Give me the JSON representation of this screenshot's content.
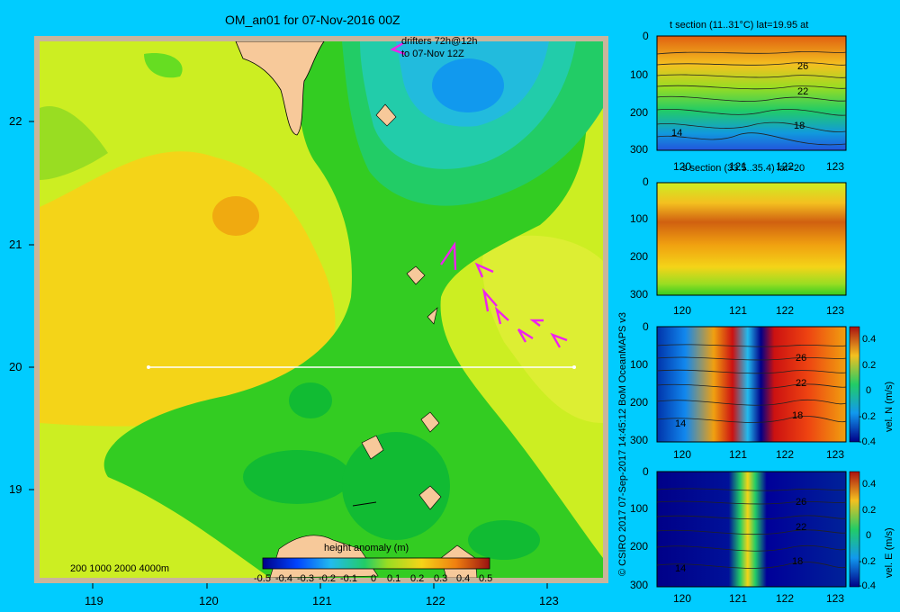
{
  "map": {
    "title": "OM_an01 for 07-Nov-2016 00Z",
    "drifter_note_1": "drifters 72h@12h",
    "drifter_note_2": "to 07-Nov 12Z",
    "x_ticks": [
      "119",
      "120",
      "121",
      "122",
      "123"
    ],
    "y_ticks": [
      "22",
      "21",
      "20",
      "19"
    ],
    "depth_legend": "200  1000  2000  4000m",
    "colorbar_title": "height anomaly (m)",
    "colorbar_ticks": [
      "-0.5",
      "-0.4",
      "-0.3",
      "-0.2",
      "-0.1",
      "0",
      "0.1",
      "0.2",
      "0.3",
      "0.4",
      "0.5"
    ],
    "colors": {
      "background": "#00ccff",
      "drifter": "#ee22ee",
      "land": "#f7c99a"
    }
  },
  "credit": "© CSIRO 2017   07-Sep-2017 14:45:12 BoM OceanMAPS v3",
  "panels": [
    {
      "title": "t section (11..31°C) lat=19.95 at",
      "y_ticks": [
        "0",
        "100",
        "200",
        "300"
      ],
      "x_ticks": [
        "120",
        "121",
        "122",
        "123"
      ],
      "contour_labels": [
        "26",
        "22",
        "18",
        "14"
      ]
    },
    {
      "title": "s section (33.5..35.4) lat=20",
      "y_ticks": [
        "0",
        "100",
        "200",
        "300"
      ],
      "x_ticks": [
        "120",
        "121",
        "122",
        "123"
      ]
    },
    {
      "title": "",
      "y_ticks": [
        "0",
        "100",
        "200",
        "300"
      ],
      "x_ticks": [
        "120",
        "121",
        "122",
        "123"
      ],
      "contour_labels": [
        "26",
        "22",
        "18",
        "14"
      ],
      "colorbar_ticks": [
        "0.4",
        "0.2",
        "0",
        "-0.2",
        "-0.4"
      ],
      "colorbar_label": "vel. N (m/s)"
    },
    {
      "title": "",
      "y_ticks": [
        "0",
        "100",
        "200",
        "300"
      ],
      "x_ticks": [
        "120",
        "121",
        "122",
        "123"
      ],
      "contour_labels": [
        "26",
        "22",
        "18",
        "14"
      ],
      "colorbar_ticks": [
        "0.4",
        "0.2",
        "0",
        "-0.2",
        "-0.4"
      ],
      "colorbar_label": "vel. E (m/s)"
    }
  ]
}
